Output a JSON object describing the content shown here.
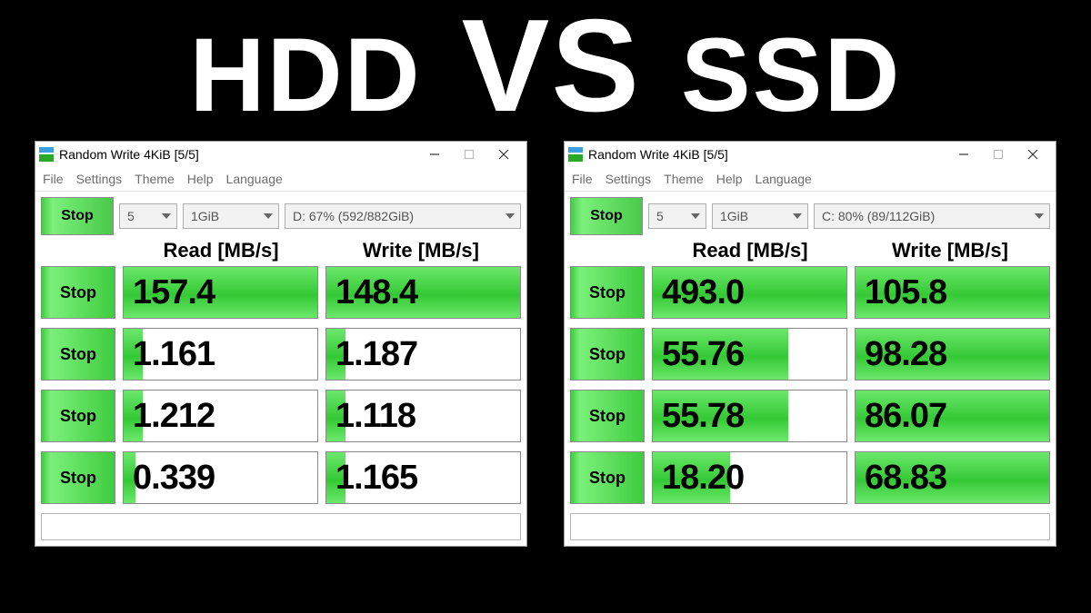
{
  "headline": {
    "left": "HDD",
    "mid": "VS",
    "right": "SSD"
  },
  "menu": {
    "file": "File",
    "settings": "Settings",
    "theme": "Theme",
    "help": "Help",
    "language": "Language"
  },
  "columns": {
    "read": "Read [MB/s]",
    "write": "Write [MB/s]"
  },
  "row_button_label": "Stop",
  "main_button_label": "Stop",
  "colors": {
    "bar_fill": "#4fd84f",
    "window_bg": "#ffffff",
    "page_bg": "#000000",
    "text": "#000000"
  },
  "left": {
    "title": "Random Write 4KiB [5/5]",
    "dd_count": "5",
    "dd_size": "1GiB",
    "dd_drive": "D: 67% (592/882GiB)",
    "rows": [
      {
        "read": {
          "value": "157.4",
          "fill_pct": 100
        },
        "write": {
          "value": "148.4",
          "fill_pct": 100
        }
      },
      {
        "read": {
          "value": "1.161",
          "fill_pct": 10
        },
        "write": {
          "value": "1.187",
          "fill_pct": 10
        }
      },
      {
        "read": {
          "value": "1.212",
          "fill_pct": 10
        },
        "write": {
          "value": "1.118",
          "fill_pct": 10
        }
      },
      {
        "read": {
          "value": "0.339",
          "fill_pct": 6
        },
        "write": {
          "value": "1.165",
          "fill_pct": 10
        }
      }
    ]
  },
  "right": {
    "title": "Random Write 4KiB [5/5]",
    "dd_count": "5",
    "dd_size": "1GiB",
    "dd_drive": "C: 80% (89/112GiB)",
    "rows": [
      {
        "read": {
          "value": "493.0",
          "fill_pct": 100
        },
        "write": {
          "value": "105.8",
          "fill_pct": 100
        }
      },
      {
        "read": {
          "value": "55.76",
          "fill_pct": 70
        },
        "write": {
          "value": "98.28",
          "fill_pct": 100
        }
      },
      {
        "read": {
          "value": "55.78",
          "fill_pct": 70
        },
        "write": {
          "value": "86.07",
          "fill_pct": 100
        }
      },
      {
        "read": {
          "value": "18.20",
          "fill_pct": 40
        },
        "write": {
          "value": "68.83",
          "fill_pct": 100
        }
      }
    ]
  }
}
